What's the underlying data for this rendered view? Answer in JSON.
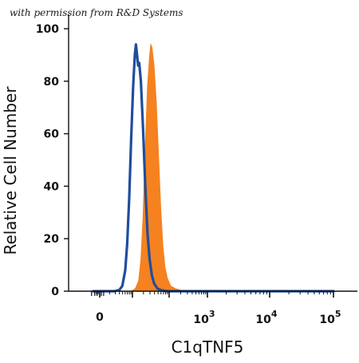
{
  "watermark": "with permission from R&D Systems",
  "chart_data": {
    "type": "area",
    "xlabel": "C1qTNF5",
    "ylabel": "Relative Cell Number",
    "x_scale": "biexponential",
    "xlim": [
      -100,
      200000
    ],
    "ylim": [
      0,
      100
    ],
    "y_ticks": [
      "0",
      "20",
      "40",
      "60",
      "80",
      "100"
    ],
    "x_ticks": [
      {
        "base": "0",
        "exp": ""
      },
      {
        "base": "10",
        "exp": "3"
      },
      {
        "base": "10",
        "exp": "4"
      },
      {
        "base": "10",
        "exp": "5"
      }
    ],
    "grid": false,
    "series": [
      {
        "style": "filled",
        "color": "#f5821f",
        "points": [
          [
            0.32,
            0
          ],
          [
            0.36,
            1
          ],
          [
            0.39,
            4
          ],
          [
            0.41,
            12
          ],
          [
            0.43,
            28
          ],
          [
            0.45,
            55
          ],
          [
            0.47,
            78
          ],
          [
            0.49,
            90
          ],
          [
            0.5,
            94
          ],
          [
            0.51,
            93
          ],
          [
            0.53,
            86
          ],
          [
            0.55,
            72
          ],
          [
            0.57,
            52
          ],
          [
            0.59,
            32
          ],
          [
            0.61,
            17
          ],
          [
            0.63,
            9
          ],
          [
            0.65,
            5
          ],
          [
            0.68,
            2
          ],
          [
            0.72,
            1
          ],
          [
            0.77,
            0.3
          ],
          [
            0.82,
            0
          ],
          [
            3.0,
            0
          ]
        ]
      },
      {
        "style": "line",
        "color": "#1f4e9d",
        "points": [
          [
            -0.1,
            0
          ],
          [
            0.15,
            0
          ],
          [
            0.2,
            0.5
          ],
          [
            0.23,
            2
          ],
          [
            0.26,
            8
          ],
          [
            0.28,
            18
          ],
          [
            0.3,
            35
          ],
          [
            0.32,
            58
          ],
          [
            0.34,
            78
          ],
          [
            0.355,
            90
          ],
          [
            0.365,
            94
          ],
          [
            0.375,
            90
          ],
          [
            0.385,
            86
          ],
          [
            0.395,
            87
          ],
          [
            0.41,
            80
          ],
          [
            0.43,
            62
          ],
          [
            0.45,
            40
          ],
          [
            0.47,
            22
          ],
          [
            0.49,
            12
          ],
          [
            0.51,
            6
          ],
          [
            0.53,
            3
          ],
          [
            0.56,
            1
          ],
          [
            0.6,
            0.3
          ],
          [
            0.65,
            0
          ],
          [
            3.0,
            0
          ]
        ]
      }
    ]
  }
}
